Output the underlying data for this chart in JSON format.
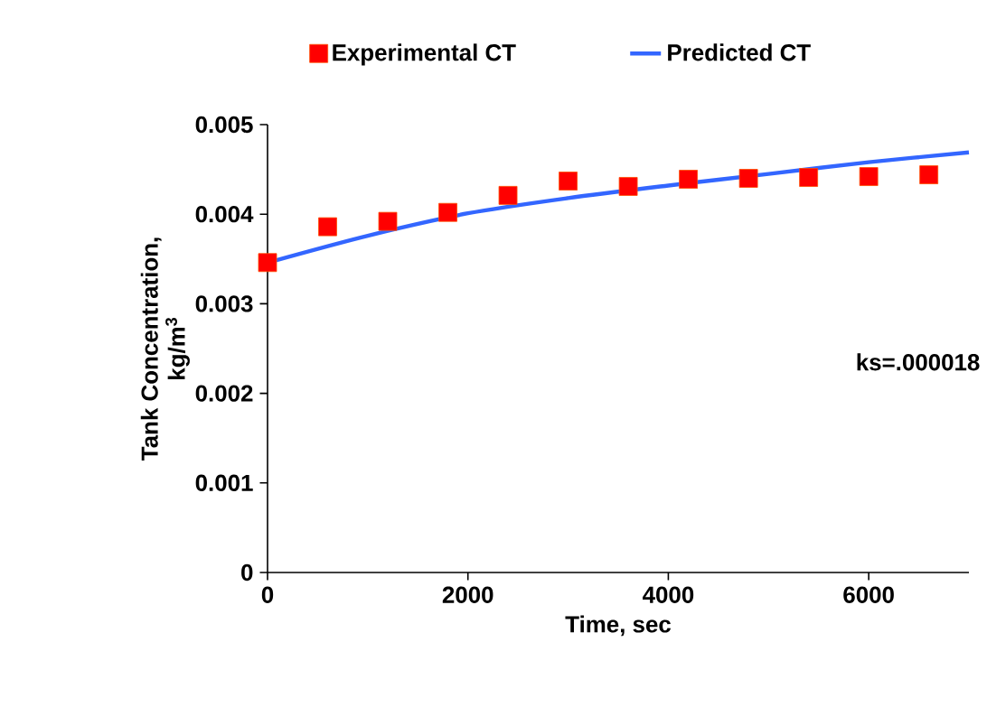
{
  "chart_data": {
    "type": "scatter",
    "xlabel": "Time, sec",
    "ylabel": "Tank Concentration, kg/m$^{3}$",
    "legend": "top",
    "annotations": [
      "ks=.000018"
    ],
    "xlim": [
      0,
      7000
    ],
    "xticks": [
      0,
      2000,
      4000,
      6000
    ],
    "ylim": [
      0,
      0.005
    ],
    "yticks": [
      {
        "value": 0,
        "label": "0"
      },
      {
        "value": 0.001,
        "label": "0.001"
      },
      {
        "value": 0.002,
        "label": "0.002"
      },
      {
        "value": 0.003,
        "label": "0.003"
      },
      {
        "value": 0.004,
        "label": "0.004"
      },
      {
        "value": 0.005,
        "label": "0.005"
      }
    ],
    "series": [
      {
        "name": "Experimental CT",
        "marker": "square",
        "color": "#ff0000",
        "x": [
          0,
          600,
          1200,
          1800,
          2400,
          3000,
          3600,
          4200,
          4800,
          5400,
          6000,
          6600
        ],
        "values": [
          0.00346,
          0.00386,
          0.00392,
          0.00402,
          0.00421,
          0.00437,
          0.00431,
          0.00439,
          0.0044,
          0.00441,
          0.00442,
          0.00444
        ]
      },
      {
        "name": "Predicted CT",
        "type": "line",
        "color": "#3366ff",
        "x": [
          0,
          1000,
          2000,
          3000,
          4000,
          5000,
          6000,
          7000
        ],
        "values": [
          0.00346,
          0.00376,
          0.00401,
          0.00418,
          0.00432,
          0.00445,
          0.00458,
          0.00469
        ]
      }
    ]
  }
}
